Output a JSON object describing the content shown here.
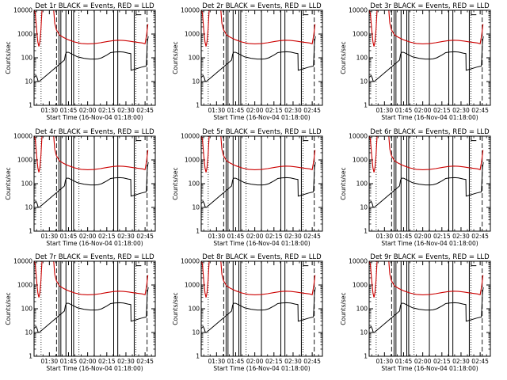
{
  "chart_data": [
    {
      "type": "line",
      "title": "Det 1r BLACK = Events, RED = LLD",
      "xlabel": "Start Time (16-Nov-04 01:18:00)",
      "ylabel": "Counts/sec",
      "yscale": "log",
      "ylim": [
        1,
        10000
      ],
      "xlim": [
        "01:18",
        "02:53"
      ],
      "x_ticks": [
        "01:30",
        "01:45",
        "02:00",
        "02:15",
        "02:30",
        "02:45"
      ],
      "y_ticks": [
        "1",
        "10",
        "100",
        "1000",
        "10000"
      ],
      "series_colors": {
        "events": "#000000",
        "lld": "#cc0000"
      }
    },
    {
      "type": "line",
      "title": "Det 2r BLACK = Events, RED = LLD",
      "xlabel": "Start Time (16-Nov-04 01:18:00)",
      "ylabel": "Counts/sec",
      "yscale": "log",
      "ylim": [
        1,
        10000
      ],
      "xlim": [
        "01:18",
        "02:53"
      ],
      "x_ticks": [
        "01:30",
        "01:45",
        "02:00",
        "02:15",
        "02:30",
        "02:45"
      ],
      "y_ticks": [
        "1",
        "10",
        "100",
        "1000",
        "10000"
      ],
      "series_colors": {
        "events": "#000000",
        "lld": "#cc0000"
      }
    },
    {
      "type": "line",
      "title": "Det 3r BLACK = Events, RED = LLD",
      "xlabel": "Start Time (16-Nov-04 01:18:00)",
      "ylabel": "Counts/sec",
      "yscale": "log",
      "ylim": [
        1,
        10000
      ],
      "xlim": [
        "01:18",
        "02:53"
      ],
      "x_ticks": [
        "01:30",
        "01:45",
        "02:00",
        "02:15",
        "02:30",
        "02:45"
      ],
      "y_ticks": [
        "1",
        "10",
        "100",
        "1000",
        "10000"
      ],
      "series_colors": {
        "events": "#000000",
        "lld": "#cc0000"
      }
    },
    {
      "type": "line",
      "title": "Det 4r BLACK = Events, RED = LLD",
      "xlabel": "Start Time (16-Nov-04 01:18:00)",
      "ylabel": "Counts/sec",
      "yscale": "log",
      "ylim": [
        1,
        10000
      ],
      "xlim": [
        "01:18",
        "02:53"
      ],
      "x_ticks": [
        "01:30",
        "01:45",
        "02:00",
        "02:15",
        "02:30",
        "02:45"
      ],
      "y_ticks": [
        "1",
        "10",
        "100",
        "1000",
        "10000"
      ],
      "series_colors": {
        "events": "#000000",
        "lld": "#cc0000"
      }
    },
    {
      "type": "line",
      "title": "Det 5r BLACK = Events, RED = LLD",
      "xlabel": "Start Time (16-Nov-04 01:18:00)",
      "ylabel": "Counts/sec",
      "yscale": "log",
      "ylim": [
        1,
        10000
      ],
      "xlim": [
        "01:18",
        "02:53"
      ],
      "x_ticks": [
        "01:30",
        "01:45",
        "02:00",
        "02:15",
        "02:30",
        "02:45"
      ],
      "y_ticks": [
        "1",
        "10",
        "100",
        "1000",
        "10000"
      ],
      "series_colors": {
        "events": "#000000",
        "lld": "#cc0000"
      }
    },
    {
      "type": "line",
      "title": "Det 6r BLACK = Events, RED = LLD",
      "xlabel": "Start Time (16-Nov-04 01:18:00)",
      "ylabel": "Counts/sec",
      "yscale": "log",
      "ylim": [
        1,
        10000
      ],
      "xlim": [
        "01:18",
        "02:53"
      ],
      "x_ticks": [
        "01:30",
        "01:45",
        "02:00",
        "02:15",
        "02:30",
        "02:45"
      ],
      "y_ticks": [
        "1",
        "10",
        "100",
        "1000",
        "10000"
      ],
      "series_colors": {
        "events": "#000000",
        "lld": "#cc0000"
      }
    },
    {
      "type": "line",
      "title": "Det 7r BLACK = Events, RED = LLD",
      "xlabel": "Start Time (16-Nov-04 01:18:00)",
      "ylabel": "Counts/sec",
      "yscale": "log",
      "ylim": [
        1,
        10000
      ],
      "xlim": [
        "01:18",
        "02:53"
      ],
      "x_ticks": [
        "01:30",
        "01:45",
        "02:00",
        "02:15",
        "02:30",
        "02:45"
      ],
      "y_ticks": [
        "1",
        "10",
        "100",
        "1000",
        "10000"
      ],
      "series_colors": {
        "events": "#000000",
        "lld": "#cc0000"
      }
    },
    {
      "type": "line",
      "title": "Det 8r BLACK = Events, RED = LLD",
      "xlabel": "Start Time (16-Nov-04 01:18:00)",
      "ylabel": "Counts/sec",
      "yscale": "log",
      "ylim": [
        1,
        10000
      ],
      "xlim": [
        "01:18",
        "02:53"
      ],
      "x_ticks": [
        "01:30",
        "01:45",
        "02:00",
        "02:15",
        "02:30",
        "02:45"
      ],
      "y_ticks": [
        "1",
        "10",
        "100",
        "1000",
        "10000"
      ],
      "series_colors": {
        "events": "#000000",
        "lld": "#cc0000"
      }
    },
    {
      "type": "line",
      "title": "Det 9r BLACK = Events, RED = LLD",
      "xlabel": "Start Time (16-Nov-04 01:18:00)",
      "ylabel": "Counts/sec",
      "yscale": "log",
      "ylim": [
        1,
        10000
      ],
      "xlim": [
        "01:18",
        "02:53"
      ],
      "x_ticks": [
        "01:30",
        "01:45",
        "02:00",
        "02:15",
        "02:30",
        "02:45"
      ],
      "y_ticks": [
        "1",
        "10",
        "100",
        "1000",
        "10000"
      ],
      "series_colors": {
        "events": "#000000",
        "lld": "#cc0000"
      }
    }
  ]
}
